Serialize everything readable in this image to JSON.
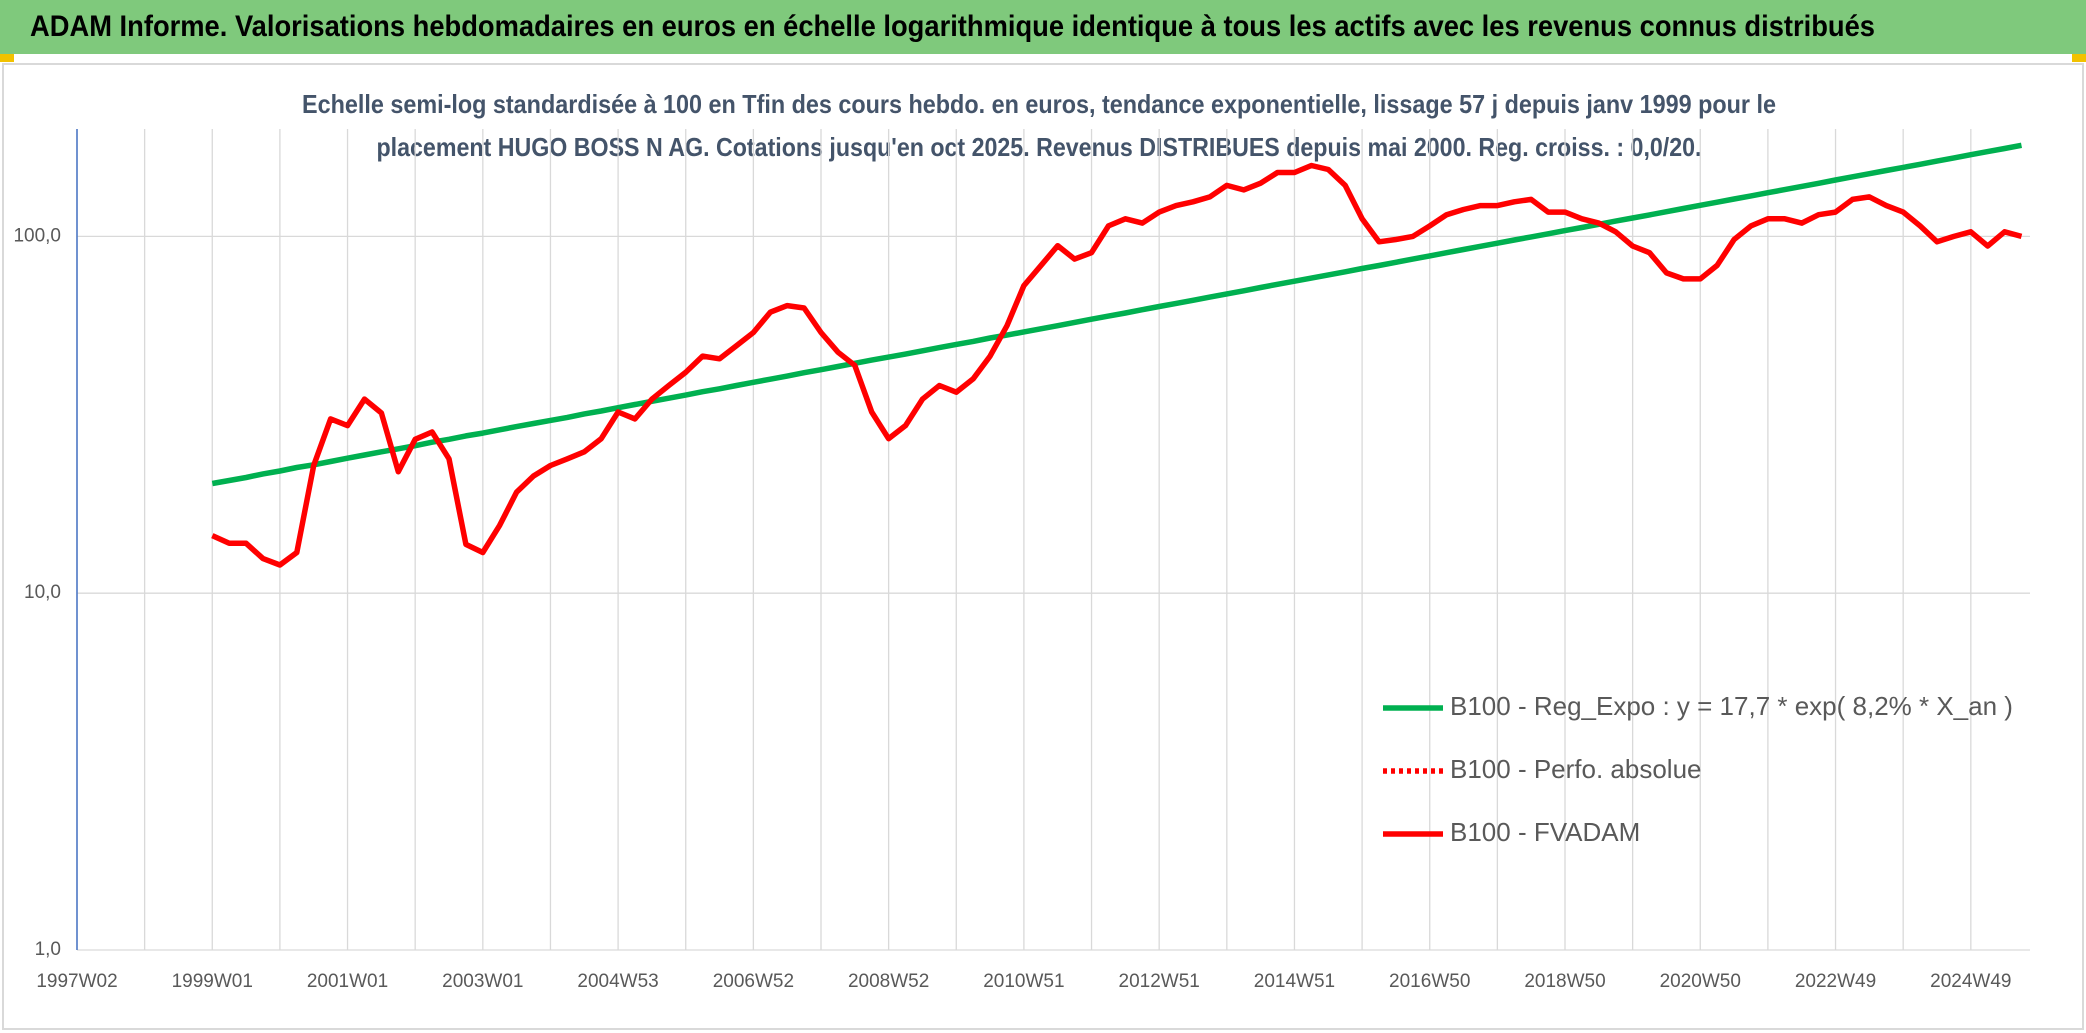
{
  "chart_data": {
    "type": "line",
    "title": "ADAM Informe. Valorisations hebdomadaires en euros en échelle logarithmique identique à tous les actifs avec les revenus connus distribués",
    "subtitle": [
      "Echelle semi-log standardisée à 100 en Tfin des cours hebdo. en euros, tendance exponentielle, lissage 57 j depuis janv 1999 pour le",
      "placement HUGO BOSS N AG. Cotations jusqu'en oct 2025. Revenus DISTRIBUES depuis mai 2000. Reg. croiss. : 0,0/20."
    ],
    "log_scale": true,
    "grid": true,
    "legend": "lower right",
    "ylim": [
      1,
      200
    ],
    "yticks": [
      {
        "value": 1,
        "label": "1,0"
      },
      {
        "value": 10,
        "label": "10,0"
      },
      {
        "value": 100,
        "label": "100,0"
      }
    ],
    "categories": [
      "1997W02",
      null,
      null,
      null,
      null,
      null,
      null,
      null,
      "1999W01",
      null,
      null,
      null,
      null,
      null,
      null,
      null,
      "2001W01",
      null,
      null,
      null,
      null,
      null,
      null,
      null,
      "2003W01",
      null,
      null,
      null,
      null,
      null,
      null,
      null,
      "2004W53",
      null,
      null,
      null,
      null,
      null,
      null,
      null,
      "2006W52",
      null,
      null,
      null,
      null,
      null,
      null,
      null,
      "2008W52",
      null,
      null,
      null,
      null,
      null,
      null,
      null,
      "2010W51",
      null,
      null,
      null,
      null,
      null,
      null,
      null,
      "2012W51",
      null,
      null,
      null,
      null,
      null,
      null,
      null,
      "2014W51",
      null,
      null,
      null,
      null,
      null,
      null,
      null,
      "2016W50",
      null,
      null,
      null,
      null,
      null,
      null,
      null,
      "2018W50",
      null,
      null,
      null,
      null,
      null,
      null,
      null,
      "2020W50",
      null,
      null,
      null,
      null,
      null,
      null,
      null,
      "2022W49",
      null,
      null,
      null,
      null,
      null,
      null,
      null,
      "2024W49",
      null,
      null,
      null
    ],
    "series": [
      {
        "name": "B100 - Reg_Expo : y = 17,7 * exp( 8,2% *  X_an )",
        "color": "#00b050",
        "style": "solid",
        "values": [
          null,
          null,
          null,
          null,
          null,
          null,
          null,
          null,
          20.3,
          20.7,
          21.1,
          21.6,
          22.0,
          22.5,
          22.9,
          23.4,
          23.9,
          24.4,
          24.9,
          25.4,
          25.9,
          26.5,
          27.0,
          27.6,
          28.1,
          28.7,
          29.3,
          29.9,
          30.5,
          31.1,
          31.8,
          32.4,
          33.1,
          33.8,
          34.5,
          35.2,
          35.9,
          36.7,
          37.4,
          38.2,
          39.0,
          39.8,
          40.6,
          41.5,
          42.3,
          43.2,
          44.1,
          45.0,
          45.9,
          46.8,
          47.8,
          48.8,
          49.8,
          50.8,
          51.9,
          52.9,
          54.0,
          55.1,
          56.2,
          57.4,
          58.6,
          59.8,
          61.0,
          62.3,
          63.6,
          64.9,
          66.2,
          67.6,
          69.0,
          70.4,
          71.9,
          73.4,
          74.9,
          76.4,
          78.0,
          79.6,
          81.3,
          82.9,
          84.6,
          86.4,
          88.2,
          90.0,
          91.9,
          93.8,
          95.7,
          97.7,
          99.7,
          101.7,
          103.8,
          105.9,
          108.1,
          110.4,
          112.6,
          114.9,
          117.3,
          119.7,
          122.2,
          124.7,
          127.3,
          129.9,
          132.6,
          135.3,
          138.1,
          140.9,
          143.9,
          146.9,
          149.9,
          153.0,
          156.1,
          159.3,
          162.6,
          166.0,
          169.4,
          172.9,
          176.4,
          180.0
        ]
      },
      {
        "name": "B100 - Perfo. absolue",
        "color": "#ff0000",
        "style": "dotted",
        "values": [
          null,
          null,
          null,
          null,
          null,
          null,
          null,
          null,
          null,
          null,
          null,
          null,
          null,
          null,
          null,
          null,
          null,
          null,
          null,
          null,
          null,
          null,
          null,
          null,
          null,
          null,
          null,
          null,
          null,
          null,
          null,
          null,
          null,
          null,
          null,
          null,
          null,
          null,
          null,
          null,
          null,
          null,
          null,
          null,
          null,
          null,
          null,
          null,
          null,
          null,
          null,
          null,
          null,
          null,
          null,
          null,
          null,
          null,
          null,
          null,
          null,
          null,
          null,
          null,
          null,
          null,
          null,
          null,
          null,
          null,
          null,
          null,
          null,
          null,
          null,
          null,
          null,
          null,
          null,
          null,
          null,
          null,
          null,
          null,
          null,
          null,
          null,
          null,
          null,
          null,
          null,
          null,
          null,
          null,
          null,
          null,
          null,
          null,
          null,
          null,
          null,
          null,
          null,
          null,
          null,
          null,
          null,
          null,
          null,
          null,
          null,
          null,
          null,
          null,
          null,
          null
        ]
      },
      {
        "name": "B100 - FVADAM",
        "color": "#ff0000",
        "style": "solid",
        "values": [
          null,
          null,
          null,
          null,
          null,
          null,
          null,
          null,
          14.5,
          13.8,
          13.8,
          12.5,
          12,
          13,
          22.8,
          30.8,
          29.5,
          35,
          32,
          21.9,
          27,
          28.3,
          23.8,
          13.7,
          13,
          15.5,
          19.2,
          21.3,
          22.8,
          23.8,
          24.9,
          27.1,
          32.2,
          30.8,
          35,
          38.2,
          41.6,
          46.2,
          45.4,
          49.4,
          53.8,
          61.3,
          64,
          63,
          53.8,
          47.4,
          43.5,
          32.2,
          27.1,
          29.5,
          35,
          38.2,
          36.6,
          39.9,
          46.2,
          56.2,
          72.8,
          82.8,
          94.2,
          86.4,
          90,
          107,
          112,
          109,
          117,
          122,
          125,
          129,
          139,
          135,
          141,
          151,
          151,
          158,
          154,
          139,
          112,
          96.6,
          98,
          100,
          107,
          115,
          119,
          122,
          122,
          125,
          127,
          117,
          117,
          112,
          109,
          103,
          94,
          90,
          79,
          76,
          76,
          83,
          98,
          107,
          112,
          112,
          109,
          115,
          117,
          127,
          129,
          122,
          117,
          107,
          96.6,
          100,
          103,
          94,
          103,
          100
        ]
      }
    ]
  }
}
